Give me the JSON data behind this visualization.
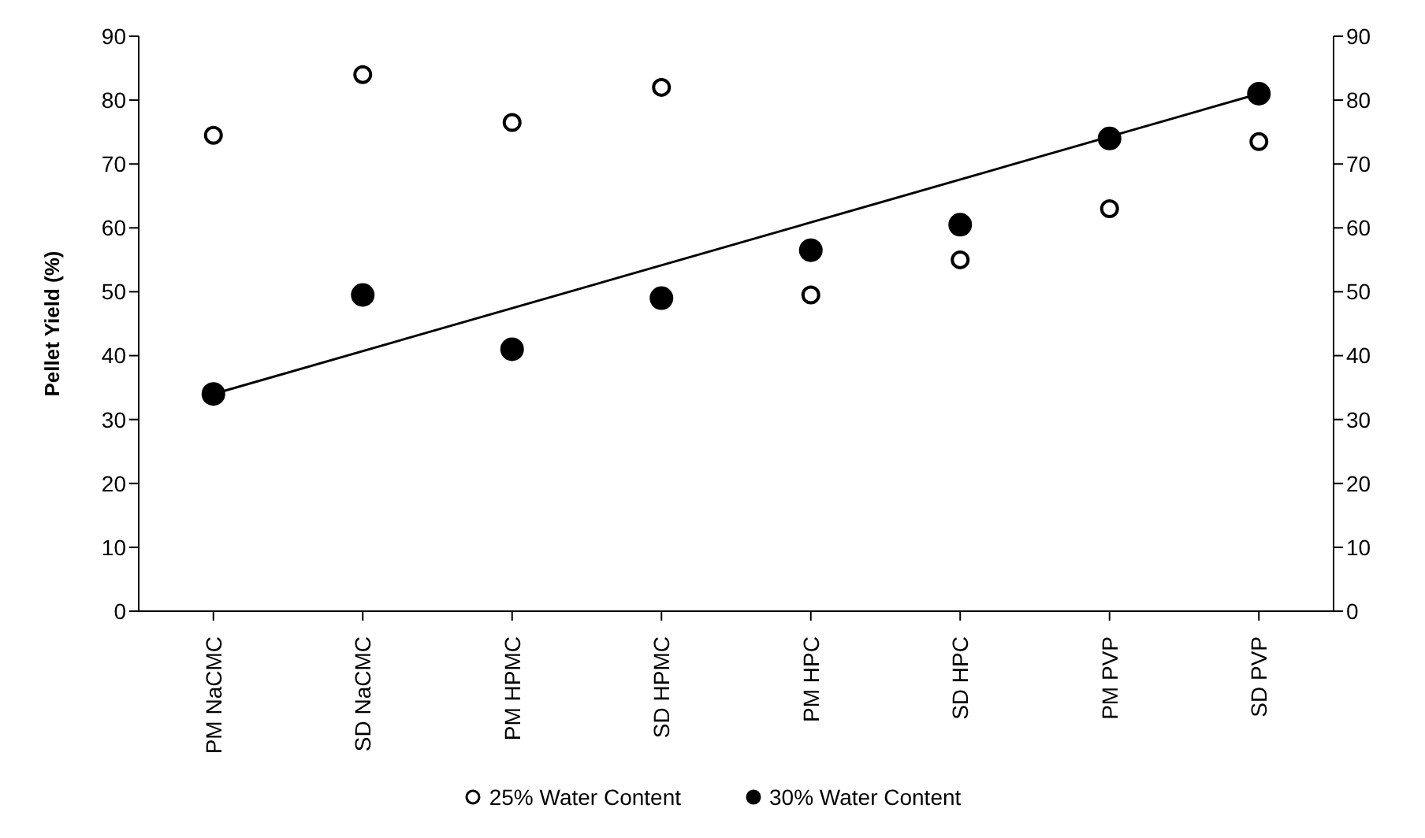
{
  "chart_data": {
    "type": "scatter",
    "ylabel": "Pellet Yield (%)",
    "categories": [
      "PM NaCMC",
      "SD NaCMC",
      "PM HPMC",
      "SD HPMC",
      "PM HPC",
      "SD HPC",
      "PM PVP",
      "SD PVP"
    ],
    "series": [
      {
        "name": "25% Water Content",
        "color": "#ffffff",
        "marker": "circle",
        "values": [
          74.5,
          84,
          76.5,
          82,
          49.5,
          55,
          63,
          73.5
        ]
      },
      {
        "name": "30% Water Content",
        "color": "#000000",
        "marker": "circle",
        "values": [
          34,
          49.5,
          41,
          49,
          56.5,
          60.5,
          74,
          81
        ]
      },
      {
        "type": "line",
        "color": "#000000",
        "marker": "none",
        "x": [
          "PM NaCMC",
          "SD PVP"
        ],
        "values": [
          34,
          81
        ]
      }
    ],
    "ylim": [
      0,
      90
    ],
    "yticks": [
      0,
      10,
      20,
      30,
      40,
      50,
      60,
      70,
      80,
      90
    ],
    "y2lim": [
      0,
      90
    ],
    "y2ticks": [
      0,
      10,
      20,
      30,
      40,
      50,
      60,
      70,
      80,
      90
    ],
    "grid": false,
    "legend": "bottom"
  }
}
